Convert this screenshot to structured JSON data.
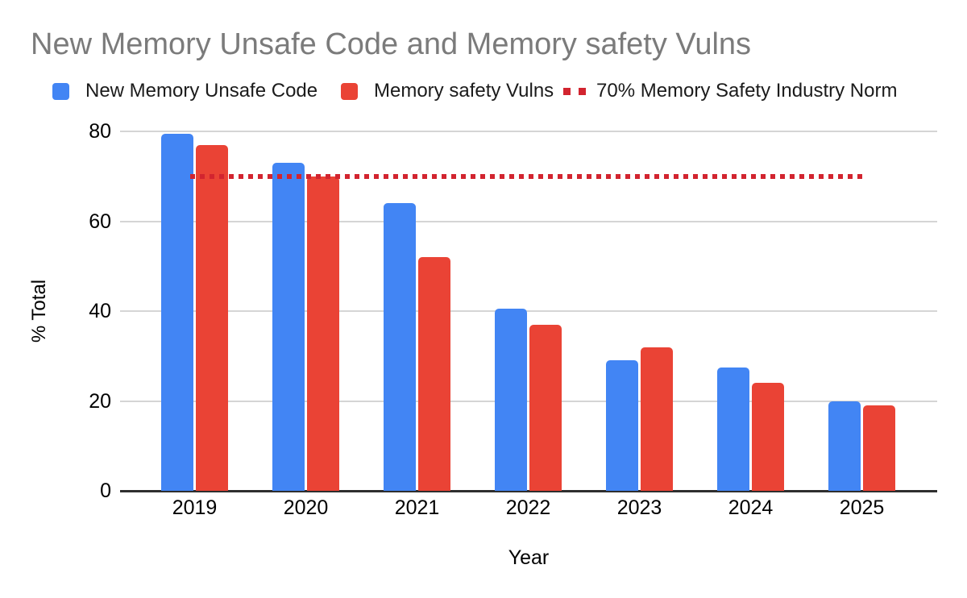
{
  "chart_data": {
    "type": "bar",
    "title": "New Memory Unsafe Code and Memory safety Vulns",
    "xlabel": "Year",
    "ylabel": "% Total",
    "categories": [
      "2019",
      "2020",
      "2021",
      "2022",
      "2023",
      "2024",
      "2025"
    ],
    "series": [
      {
        "name": "New Memory Unsafe Code",
        "color": "#4285F4",
        "values": [
          79.5,
          73,
          64,
          40.5,
          29,
          27.5,
          20
        ]
      },
      {
        "name": "Memory safety Vulns",
        "color": "#EA4335",
        "values": [
          77,
          70,
          52,
          37,
          32,
          24,
          19
        ]
      }
    ],
    "threshold_line": {
      "name": "70% Memory Safety Industry Norm",
      "value": 70,
      "color": "#D2242F",
      "style": "dotted"
    },
    "ylim": [
      0,
      80
    ],
    "yticks": [
      0,
      20,
      40,
      60,
      80
    ],
    "grid": true,
    "legend_position": "top",
    "colors": {
      "title_text": "#7b7b7b",
      "gridline": "#d5d5d5",
      "axis_line": "#2e2e2e",
      "background": "#ffffff"
    }
  }
}
